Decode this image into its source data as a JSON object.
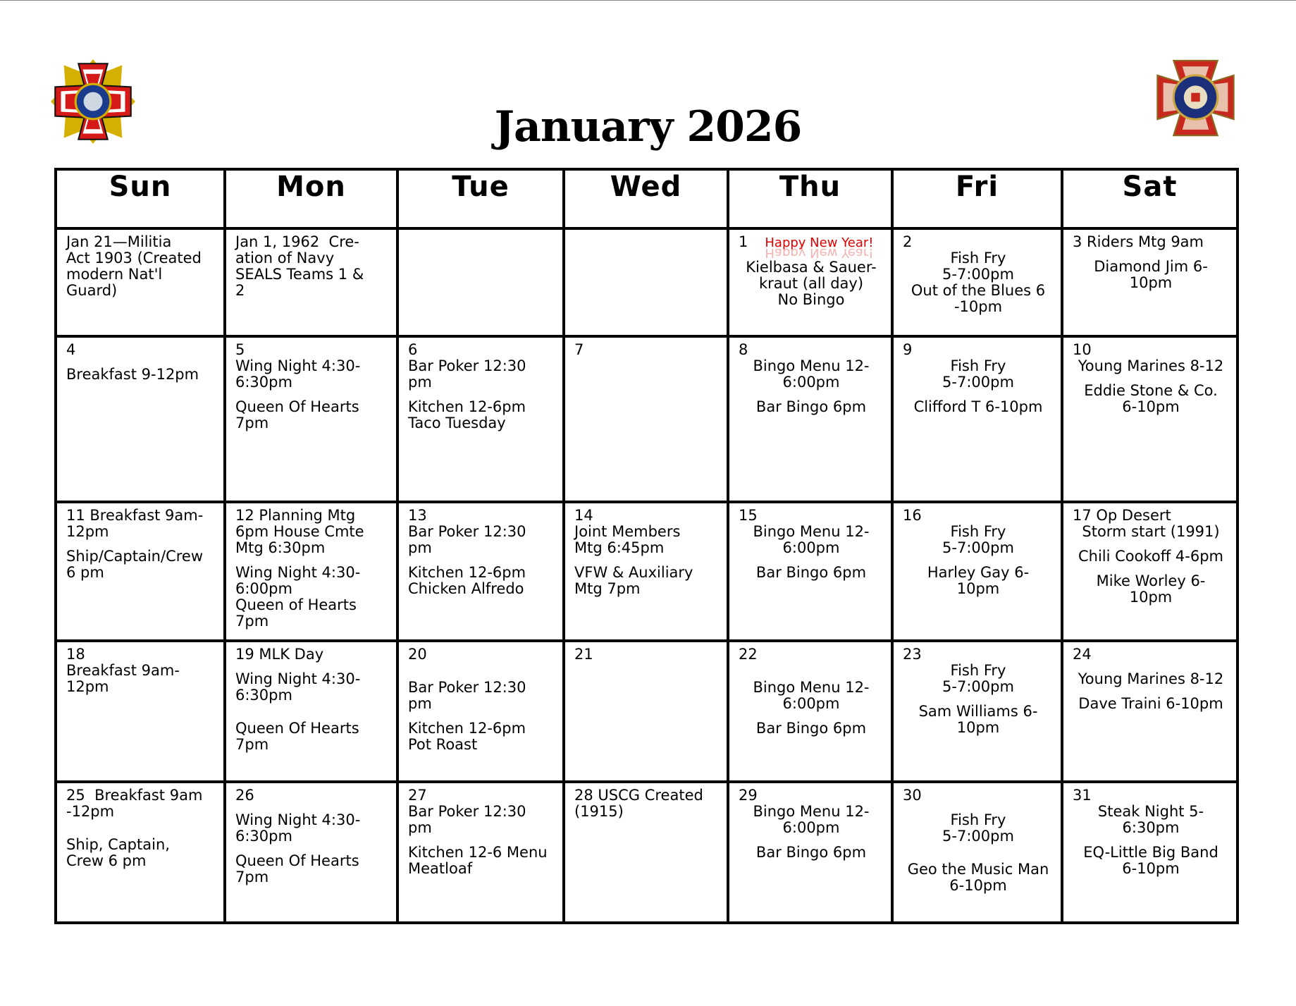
{
  "title": "January 2026",
  "logos": {
    "left": "VFW - Veterans of Foreign Wars of the United States",
    "right": "Veterans of Foreign Wars Auxiliary"
  },
  "days": [
    "Sun",
    "Mon",
    "Tue",
    "Wed",
    "Thu",
    "Fri",
    "Sat"
  ],
  "weeks": [
    [
      {
        "align": "l",
        "lines": [
          "Jan 21—Militia",
          "Act 1903 (Created",
          "modern Nat'l",
          "Guard)"
        ]
      },
      {
        "align": "l",
        "lines": [
          "Jan 1, 1962  Cre-",
          "ation of Navy",
          "SEALS Teams 1 &",
          "2"
        ]
      },
      {
        "align": "l",
        "lines": []
      },
      {
        "align": "l",
        "lines": []
      },
      {
        "align": "c",
        "day": "1",
        "special": "Happy New Year!",
        "lines": [
          "",
          "Kielbasa & Sauer-",
          "kraut (all day)",
          "No Bingo"
        ]
      },
      {
        "align": "c",
        "day": "2",
        "lines": [
          "Fish Fry",
          "5-7:00pm",
          "Out of the Blues 6",
          "-10pm"
        ]
      },
      {
        "align": "c",
        "first": "3 Riders Mtg 9am",
        "lines": [
          "",
          "Diamond Jim 6-",
          "10pm"
        ]
      }
    ],
    [
      {
        "align": "l",
        "day": "4",
        "lines": [
          "",
          "Breakfast 9-12pm"
        ]
      },
      {
        "align": "l",
        "day": "5",
        "lines": [
          "Wing Night 4:30-",
          "6:30pm",
          "",
          "Queen Of Hearts",
          "7pm"
        ]
      },
      {
        "align": "l",
        "day": "6",
        "lines": [
          "Bar Poker 12:30",
          "pm",
          "",
          "Kitchen 12-6pm",
          "Taco Tuesday"
        ]
      },
      {
        "align": "l",
        "day": "7",
        "lines": []
      },
      {
        "align": "c",
        "day": "8",
        "lines": [
          "Bingo Menu 12-",
          "6:00pm",
          "",
          "Bar Bingo 6pm"
        ]
      },
      {
        "align": "c",
        "day": "9",
        "lines": [
          "Fish Fry",
          "5-7:00pm",
          "",
          "Clifford T 6-10pm"
        ]
      },
      {
        "align": "c",
        "day": "10",
        "lines": [
          "Young Marines 8-12",
          "",
          "Eddie Stone & Co.",
          "6-10pm"
        ]
      }
    ],
    [
      {
        "align": "l",
        "lines": [
          "11 Breakfast 9am-",
          "12pm",
          "",
          "Ship/Captain/Crew",
          "6 pm"
        ]
      },
      {
        "align": "l",
        "lines": [
          "12 Planning Mtg",
          "6pm House Cmte",
          "Mtg 6:30pm",
          "",
          "Wing Night 4:30-",
          "6:00pm",
          "Queen of Hearts",
          "7pm"
        ]
      },
      {
        "align": "l",
        "lines": [
          "13",
          "Bar Poker 12:30",
          "pm",
          "",
          "Kitchen 12-6pm",
          "Chicken Alfredo"
        ]
      },
      {
        "align": "l",
        "lines": [
          "14",
          "Joint Members",
          "Mtg 6:45pm",
          "",
          "VFW & Auxiliary",
          "Mtg 7pm"
        ]
      },
      {
        "align": "c",
        "day": "15",
        "lines": [
          "Bingo Menu 12-",
          "6:00pm",
          "",
          "Bar Bingo 6pm"
        ]
      },
      {
        "align": "c",
        "day": "16",
        "lines": [
          "Fish Fry",
          "5-7:00pm",
          "",
          "Harley Gay 6-",
          "10pm"
        ]
      },
      {
        "align": "c",
        "first": "17 Op Desert",
        "lines": [
          "Storm start (1991)",
          "",
          "Chili Cookoff 4-6pm",
          "",
          "Mike Worley 6-",
          "10pm"
        ]
      }
    ],
    [
      {
        "align": "l",
        "day": "18",
        "lines": [
          "Breakfast 9am-",
          "12pm"
        ]
      },
      {
        "align": "l",
        "day": "19 MLK Day",
        "lines": [
          "",
          "Wing Night 4:30-",
          "6:30pm",
          "",
          "",
          "Queen Of Hearts",
          "7pm"
        ]
      },
      {
        "align": "l",
        "day": "20",
        "lines": [
          "",
          "",
          "Bar Poker 12:30",
          "pm",
          "",
          "Kitchen 12-6pm",
          "Pot Roast"
        ]
      },
      {
        "align": "l",
        "day": "21",
        "lines": []
      },
      {
        "align": "c",
        "day": "22",
        "lines": [
          "",
          "",
          "Bingo Menu 12-",
          "6:00pm",
          "",
          "Bar Bingo 6pm"
        ]
      },
      {
        "align": "c",
        "day": "23",
        "lines": [
          "Fish Fry",
          "5-7:00pm",
          "",
          "Sam Williams 6-",
          "10pm"
        ]
      },
      {
        "align": "c",
        "day": "24",
        "lines": [
          "",
          "Young Marines 8-12",
          "",
          "Dave Traini 6-10pm"
        ]
      }
    ],
    [
      {
        "align": "l",
        "lines": [
          "25  Breakfast 9am",
          "-12pm",
          "",
          "",
          "Ship, Captain,",
          "Crew 6 pm"
        ]
      },
      {
        "align": "l",
        "day": "26",
        "lines": [
          "",
          "Wing Night 4:30-",
          "6:30pm",
          "",
          "Queen Of Hearts",
          "7pm"
        ]
      },
      {
        "align": "l",
        "day": "27",
        "lines": [
          "Bar Poker 12:30",
          "pm",
          "",
          "Kitchen 12-6 Menu",
          "Meatloaf"
        ]
      },
      {
        "align": "l",
        "lines": [
          "28 USCG Created",
          "(1915)"
        ]
      },
      {
        "align": "c",
        "day": "29",
        "lines": [
          "Bingo Menu 12-",
          "6:00pm",
          "",
          "Bar Bingo 6pm"
        ]
      },
      {
        "align": "c",
        "day": "30",
        "lines": [
          "",
          "Fish Fry",
          "5-7:00pm",
          "",
          "",
          "Geo the Music Man",
          "6-10pm"
        ]
      },
      {
        "align": "c",
        "day": "31",
        "lines": [
          "Steak Night 5-",
          "6:30pm",
          "",
          "EQ-Little Big Band",
          "6-10pm"
        ]
      }
    ]
  ]
}
